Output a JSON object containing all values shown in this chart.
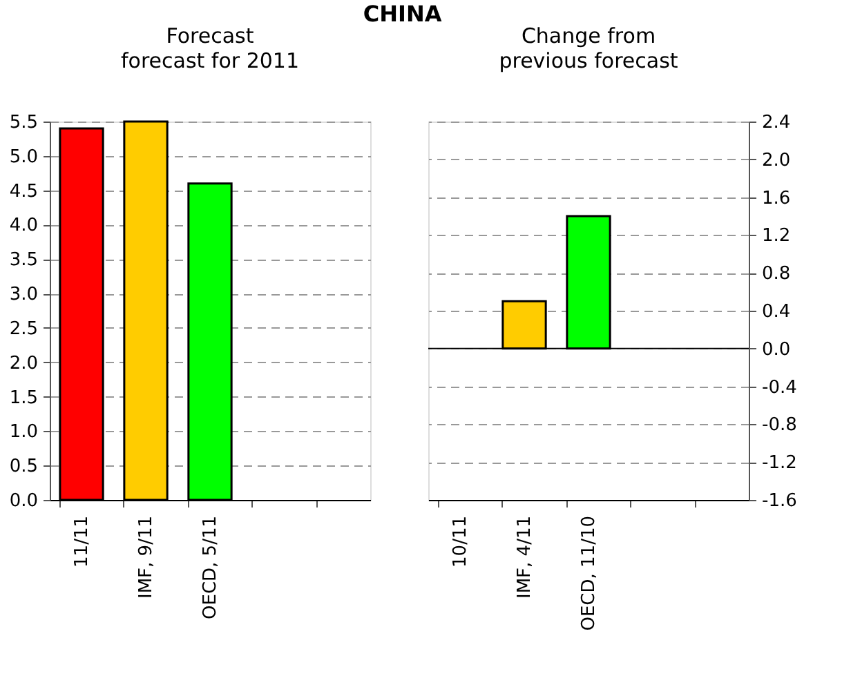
{
  "chart_data": [
    {
      "type": "bar",
      "title": "Forecast",
      "subtitle": "forecast for 2011",
      "annotations": [
        "CHINA"
      ],
      "categories": [
        "11/11",
        "IMF, 9/11",
        "OECD, 5/11",
        null,
        null
      ],
      "values": [
        5.4,
        5.5,
        4.6,
        null,
        null
      ],
      "colors": [
        "#ff0000",
        "#ffcc00",
        "#00ff00",
        "#00ff00",
        "#00ff00"
      ],
      "ylim": [
        0,
        5.5
      ],
      "yticks": [
        {
          "value": 0,
          "label": "0.0"
        },
        0.5,
        {
          "value": 1,
          "label": "1.0"
        },
        1.5,
        {
          "value": 2,
          "label": "2.0"
        },
        2.5,
        {
          "value": 3,
          "label": "3.0"
        },
        3.5,
        {
          "value": 4,
          "label": "4.0"
        },
        4.5,
        {
          "value": 5,
          "label": "5.0"
        },
        5.5
      ],
      "grid": "y",
      "legend": false
    },
    {
      "type": "bar",
      "title": "Change from",
      "subtitle": "previous forecast",
      "categories": [
        "10/11",
        "IMF, 4/11",
        "OECD, 11/10",
        null,
        null
      ],
      "values": [
        null,
        0.5,
        1.4,
        null,
        null
      ],
      "colors": [
        "#ff0000",
        "#ffcc00",
        "#00ff00",
        "#00ff00",
        "#00ff00"
      ],
      "ylim": [
        -1.6,
        2.4
      ],
      "yticks": [
        -1.6,
        -1.2,
        -0.8,
        -0.4,
        {
          "value": 0,
          "label": "0.0"
        },
        0.4,
        0.8,
        1.2,
        1.6,
        {
          "value": 2,
          "label": "2.0"
        },
        2.4
      ],
      "grid": "y",
      "legend": false
    }
  ]
}
